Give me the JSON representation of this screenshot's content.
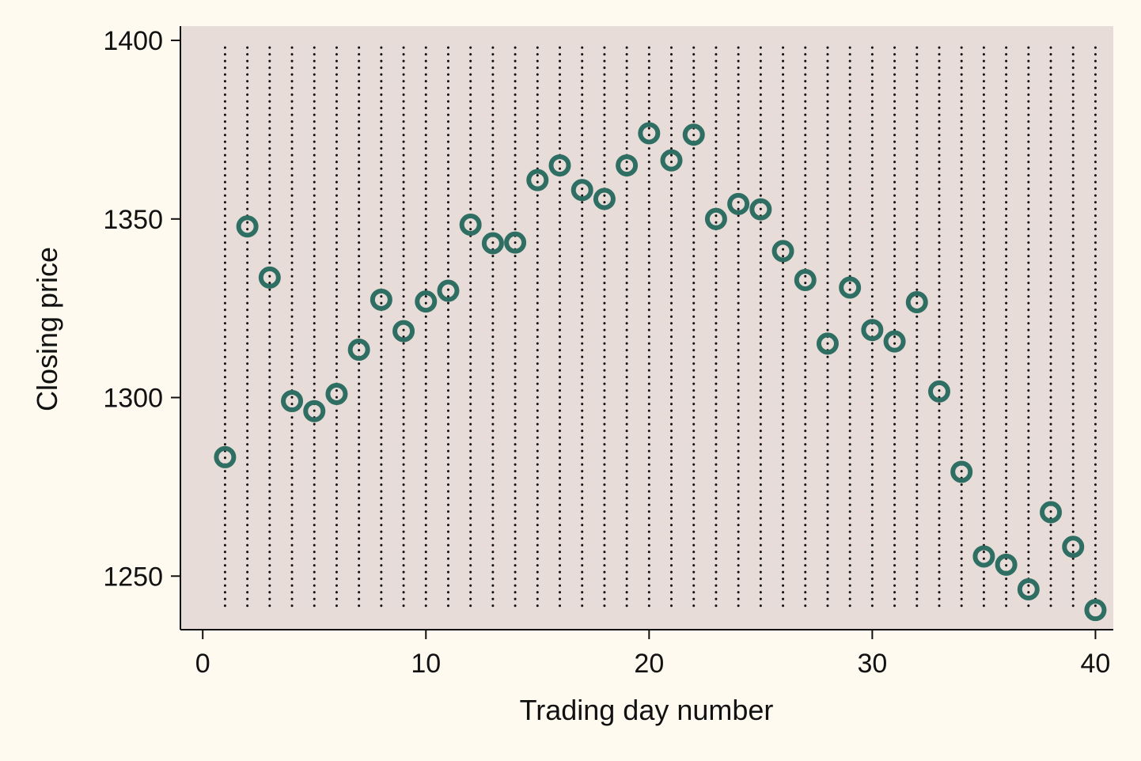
{
  "chart_data": {
    "type": "scatter",
    "xlabel": "Trading day number",
    "ylabel": "Closing price",
    "xlim": [
      -1,
      40.8
    ],
    "ylim": [
      1235,
      1404
    ],
    "xticks": [
      0,
      10,
      20,
      30,
      40
    ],
    "yticks": [
      1250,
      1300,
      1350,
      1400
    ],
    "vertical_dotted_lines_at_each_x": true,
    "vline_range": [
      1240,
      1398
    ],
    "colors": {
      "marker": "#2f6f63",
      "plot_background": "#e8dcd8",
      "page_background": "#fffaf0",
      "dotted_lines": "#111111"
    },
    "series": [
      {
        "x": [
          1,
          2,
          3,
          4,
          5,
          6,
          7,
          8,
          9,
          10,
          11,
          12,
          13,
          14,
          15,
          16,
          17,
          18,
          19,
          20,
          21,
          22,
          23,
          24,
          25,
          26,
          27,
          28,
          29,
          30,
          31,
          32,
          33,
          34,
          35,
          36,
          37,
          38,
          39,
          40
        ],
        "y": [
          1283.3,
          1347.9,
          1333.6,
          1299.0,
          1296.2,
          1301.0,
          1313.4,
          1327.4,
          1318.6,
          1326.9,
          1329.9,
          1348.4,
          1343.2,
          1343.4,
          1360.9,
          1365.0,
          1358.1,
          1355.6,
          1365.0,
          1374.0,
          1366.4,
          1373.6,
          1350.0,
          1354.2,
          1352.7,
          1341.0,
          1332.9,
          1315.1,
          1330.8,
          1318.9,
          1315.7,
          1326.7,
          1301.7,
          1279.2,
          1255.5,
          1253.2,
          1246.3,
          1267.9,
          1258.2,
          1240.5
        ]
      }
    ]
  }
}
